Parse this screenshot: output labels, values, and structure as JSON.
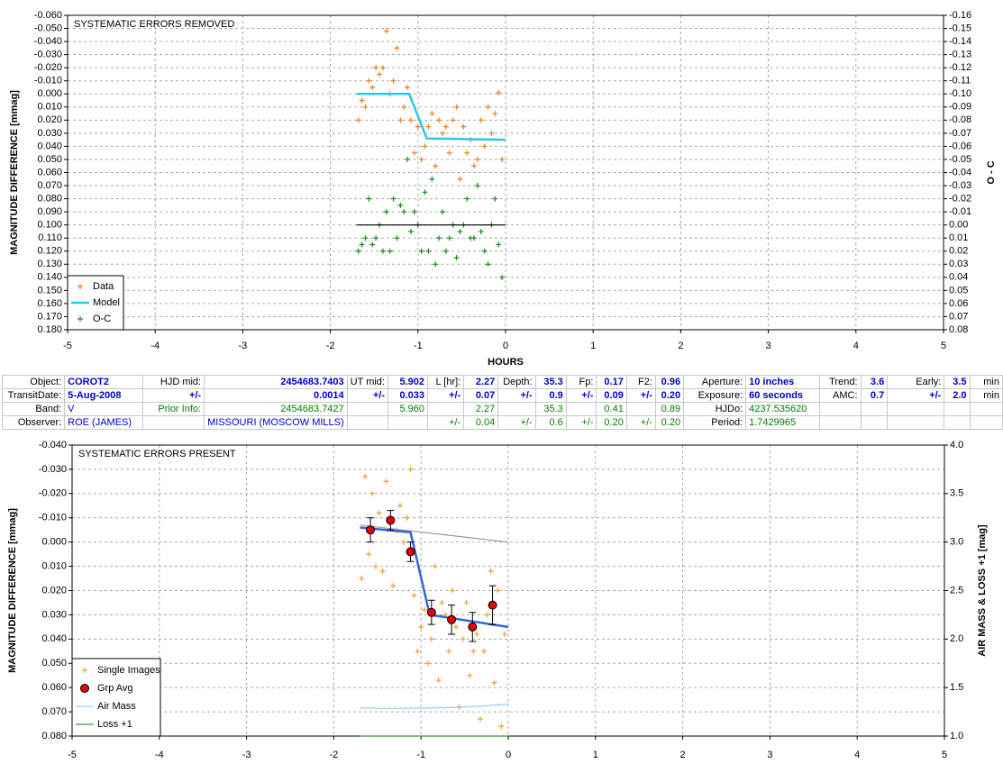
{
  "chart_data": [
    {
      "type": "scatter",
      "title": "SYSTEMATIC ERRORS REMOVED",
      "ylabel": "MAGNITUDE DIFFERENCE [mmag]",
      "y2label": "O - C",
      "xlabel": "HOURS",
      "xlim": [
        -5,
        5
      ],
      "xticks": [
        -5,
        -4,
        -3,
        -2,
        -1,
        0,
        1,
        2,
        3,
        4,
        5
      ],
      "ylim": [
        -0.06,
        0.18
      ],
      "y_reversed": true,
      "yticks": [
        {
          "value": -0.06,
          "label": "-0.060"
        },
        {
          "value": -0.05,
          "label": "-0.050"
        },
        {
          "value": -0.04,
          "label": "-0.040"
        },
        {
          "value": -0.03,
          "label": "-0.030"
        },
        {
          "value": -0.02,
          "label": "-0.020"
        },
        {
          "value": -0.01,
          "label": "-0.010"
        },
        {
          "value": 0,
          "label": "0.000"
        },
        {
          "value": 0.01,
          "label": "0.010"
        },
        {
          "value": 0.02,
          "label": "0.020"
        },
        {
          "value": 0.03,
          "label": "0.030"
        },
        {
          "value": 0.04,
          "label": "0.040"
        },
        {
          "value": 0.05,
          "label": "0.050"
        },
        {
          "value": 0.06,
          "label": "0.060"
        },
        {
          "value": 0.07,
          "label": "0.070"
        },
        {
          "value": 0.08,
          "label": "0.080"
        },
        {
          "value": 0.09,
          "label": "0.090"
        },
        {
          "value": 0.1,
          "label": "0.100"
        },
        {
          "value": 0.11,
          "label": "0.110"
        },
        {
          "value": 0.12,
          "label": "0.120"
        },
        {
          "value": 0.13,
          "label": "0.130"
        },
        {
          "value": 0.14,
          "label": "0.140"
        },
        {
          "value": 0.15,
          "label": "0.150"
        },
        {
          "value": 0.16,
          "label": "0.160"
        },
        {
          "value": 0.17,
          "label": "0.170"
        },
        {
          "value": 0.18,
          "label": "0.180"
        }
      ],
      "y2lim": [
        -0.16,
        0.08
      ],
      "y2_reversed": true,
      "y2ticks": [
        {
          "value": -0.16,
          "label": "-0.16"
        },
        {
          "value": -0.15,
          "label": "-0.15"
        },
        {
          "value": -0.14,
          "label": "-0.14"
        },
        {
          "value": -0.13,
          "label": "-0.13"
        },
        {
          "value": -0.12,
          "label": "-0.12"
        },
        {
          "value": -0.11,
          "label": "-0.11"
        },
        {
          "value": -0.1,
          "label": "-0.10"
        },
        {
          "value": -0.09,
          "label": "-0.09"
        },
        {
          "value": -0.08,
          "label": "-0.08"
        },
        {
          "value": -0.07,
          "label": "-0.07"
        },
        {
          "value": -0.06,
          "label": "-0.06"
        },
        {
          "value": -0.05,
          "label": "-0.05"
        },
        {
          "value": -0.04,
          "label": "-0.04"
        },
        {
          "value": -0.03,
          "label": "-0.03"
        },
        {
          "value": -0.02,
          "label": "-0.02"
        },
        {
          "value": -0.01,
          "label": "-0.01"
        },
        {
          "value": 0,
          "label": "0.00"
        },
        {
          "value": 0.01,
          "label": "0.01"
        },
        {
          "value": 0.02,
          "label": "0.02"
        },
        {
          "value": 0.03,
          "label": "0.03"
        },
        {
          "value": 0.04,
          "label": "0.04"
        },
        {
          "value": 0.05,
          "label": "0.05"
        },
        {
          "value": 0.06,
          "label": "0.06"
        },
        {
          "value": 0.07,
          "label": "0.07"
        },
        {
          "value": 0.08,
          "label": "0.08"
        }
      ],
      "grid": true,
      "legend": "lower left",
      "series": [
        {
          "name": "Data",
          "type": "scatter",
          "marker": "plus",
          "color": "#e8801e",
          "x": [
            -1.68,
            -1.64,
            -1.6,
            -1.56,
            -1.52,
            -1.48,
            -1.44,
            -1.4,
            -1.36,
            -1.32,
            -1.28,
            -1.24,
            -1.2,
            -1.16,
            -1.12,
            -1.08,
            -1.04,
            -1.0,
            -0.96,
            -0.92,
            -0.88,
            -0.84,
            -0.8,
            -0.76,
            -0.72,
            -0.68,
            -0.64,
            -0.6,
            -0.56,
            -0.52,
            -0.48,
            -0.44,
            -0.4,
            -0.36,
            -0.32,
            -0.28,
            -0.24,
            -0.2,
            -0.16,
            -0.12,
            -0.08,
            -0.04
          ],
          "values": [
            0.02,
            0.005,
            0.01,
            -0.01,
            -0.005,
            -0.02,
            -0.015,
            -0.02,
            -0.048,
            0.0,
            -0.01,
            -0.035,
            0.02,
            0.01,
            -0.005,
            0.02,
            0.045,
            0.025,
            0.05,
            0.04,
            0.025,
            0.015,
            0.055,
            0.02,
            0.03,
            0.025,
            0.045,
            0.02,
            0.01,
            0.065,
            0.025,
            0.045,
            0.035,
            0.055,
            0.05,
            0.02,
            0.04,
            0.01,
            0.03,
            0.015,
            -0.001,
            0.05
          ]
        },
        {
          "name": "Model",
          "type": "line",
          "color": "#33c4ee",
          "width": 2.5,
          "x": [
            -1.7,
            -1.1,
            -0.9,
            0.0
          ],
          "values": [
            0.0,
            0.0,
            0.034,
            0.035
          ]
        },
        {
          "name": "O-C",
          "type": "scatter",
          "marker": "plus",
          "color": "#1a8a1a",
          "axis": "y2",
          "x": [
            -1.68,
            -1.64,
            -1.6,
            -1.56,
            -1.52,
            -1.48,
            -1.44,
            -1.4,
            -1.36,
            -1.32,
            -1.28,
            -1.24,
            -1.2,
            -1.16,
            -1.12,
            -1.08,
            -1.04,
            -1.0,
            -0.96,
            -0.92,
            -0.88,
            -0.84,
            -0.8,
            -0.76,
            -0.72,
            -0.68,
            -0.64,
            -0.6,
            -0.56,
            -0.52,
            -0.48,
            -0.44,
            -0.4,
            -0.36,
            -0.32,
            -0.28,
            -0.24,
            -0.2,
            -0.16,
            -0.12,
            -0.08,
            -0.04
          ],
          "values": [
            0.02,
            0.015,
            0.01,
            -0.02,
            0.015,
            0.01,
            0.0,
            0.02,
            -0.01,
            0.02,
            -0.02,
            0.01,
            -0.015,
            -0.01,
            -0.05,
            0.005,
            -0.01,
            0.0,
            0.02,
            -0.025,
            0.02,
            -0.035,
            0.03,
            0.01,
            -0.01,
            0.02,
            0.01,
            0.0,
            0.025,
            0.005,
            0.0,
            -0.02,
            0.01,
            0.01,
            -0.03,
            0.005,
            0.02,
            0.03,
            0.0,
            -0.02,
            0.015,
            0.04
          ]
        },
        {
          "type": "line",
          "color": "#000000",
          "width": 1.2,
          "axis": "y2",
          "x": [
            -1.7,
            0.0
          ],
          "values": [
            0.0,
            0.0
          ]
        }
      ]
    },
    {
      "type": "scatter",
      "title": "SYSTEMATIC ERRORS PRESENT",
      "ylabel": "MAGNITUDE DIFFERENCE [mmag]",
      "y2label": "AIR MASS & LOSS +1 [mag]",
      "xlim": [
        -5,
        5
      ],
      "xticks": [
        -5,
        -4,
        -3,
        -2,
        -1,
        0,
        1,
        2,
        3,
        4,
        5
      ],
      "ylim": [
        -0.04,
        0.08
      ],
      "y_reversed": true,
      "yticks": [
        {
          "value": -0.04,
          "label": "-0.040"
        },
        {
          "value": -0.03,
          "label": "-0.030"
        },
        {
          "value": -0.02,
          "label": "-0.020"
        },
        {
          "value": -0.01,
          "label": "-0.010"
        },
        {
          "value": 0,
          "label": "0.000"
        },
        {
          "value": 0.01,
          "label": "0.010"
        },
        {
          "value": 0.02,
          "label": "0.020"
        },
        {
          "value": 0.03,
          "label": "0.030"
        },
        {
          "value": 0.04,
          "label": "0.040"
        },
        {
          "value": 0.05,
          "label": "0.050"
        },
        {
          "value": 0.06,
          "label": "0.060"
        },
        {
          "value": 0.07,
          "label": "0.070"
        },
        {
          "value": 0.08,
          "label": "0.080"
        }
      ],
      "y2lim": [
        1.0,
        4.0
      ],
      "y2_reversed": false,
      "y2ticks": [
        {
          "value": 1.0,
          "label": "1.0"
        },
        {
          "value": 1.5,
          "label": "1.5"
        },
        {
          "value": 2.0,
          "label": "2.0"
        },
        {
          "value": 2.5,
          "label": "2.5"
        },
        {
          "value": 3.0,
          "label": "3.0"
        },
        {
          "value": 3.5,
          "label": "3.5"
        },
        {
          "value": 4.0,
          "label": "4.0"
        }
      ],
      "grid": true,
      "legend": "lower left",
      "series": [
        {
          "name": "Single Images",
          "type": "scatter",
          "marker": "plus",
          "color": "#f0a030",
          "x": [
            -1.68,
            -1.64,
            -1.6,
            -1.56,
            -1.52,
            -1.48,
            -1.44,
            -1.4,
            -1.36,
            -1.32,
            -1.28,
            -1.24,
            -1.2,
            -1.16,
            -1.12,
            -1.08,
            -1.04,
            -1.0,
            -0.96,
            -0.92,
            -0.88,
            -0.84,
            -0.8,
            -0.76,
            -0.72,
            -0.68,
            -0.64,
            -0.6,
            -0.56,
            -0.52,
            -0.48,
            -0.44,
            -0.4,
            -0.36,
            -0.32,
            -0.28,
            -0.24,
            -0.2,
            -0.16,
            -0.12,
            -0.08,
            -0.04
          ],
          "values": [
            0.015,
            -0.027,
            0.005,
            -0.02,
            0.01,
            -0.012,
            0.012,
            -0.025,
            -0.008,
            0.018,
            -0.005,
            -0.015,
            0.0,
            -0.01,
            -0.03,
            0.022,
            0.045,
            0.035,
            0.028,
            0.05,
            0.04,
            0.01,
            0.057,
            0.025,
            0.03,
            0.045,
            0.02,
            0.035,
            0.068,
            0.04,
            0.025,
            0.055,
            0.045,
            0.038,
            0.073,
            0.045,
            0.03,
            0.012,
            0.058,
            0.02,
            0.076,
            0.038
          ]
        },
        {
          "type": "line",
          "color": "#999999",
          "width": 1.2,
          "x": [
            -1.7,
            0.0
          ],
          "values": [
            -0.007,
            0.0
          ]
        },
        {
          "type": "line",
          "color": "#3366dd",
          "width": 2.5,
          "x": [
            -1.7,
            -1.12,
            -0.9,
            0.0
          ],
          "values": [
            -0.006,
            -0.004,
            0.03,
            0.035
          ]
        },
        {
          "name": "Grp Avg",
          "type": "errorbar",
          "color": "#e00000",
          "x": [
            -1.58,
            -1.35,
            -1.12,
            -0.88,
            -0.65,
            -0.41,
            -0.18
          ],
          "values": [
            -0.005,
            -0.009,
            0.004,
            0.029,
            0.032,
            0.035,
            0.026
          ],
          "errors": [
            0.005,
            0.004,
            0.004,
            0.005,
            0.006,
            0.006,
            0.008
          ]
        },
        {
          "name": "Air Mass",
          "type": "line",
          "color": "#99ccee",
          "width": 1.2,
          "axis": "y2",
          "x": [
            -1.7,
            -1.4,
            -1.0,
            -0.6,
            -0.3,
            0.0
          ],
          "values": [
            1.29,
            1.285,
            1.288,
            1.295,
            1.31,
            1.33
          ]
        },
        {
          "name": "Loss +1",
          "type": "line",
          "color": "#339933",
          "width": 1.2,
          "axis": "y2",
          "x": [
            -1.7,
            0.0
          ],
          "values": [
            1.0,
            1.0
          ]
        }
      ]
    }
  ],
  "table": {
    "rows": [
      [
        "Object:",
        "COROT2",
        "HJD mid:",
        "2454683.7403",
        "UT mid:",
        "5.902",
        "L [hr]:",
        "2.27",
        "Depth:",
        "35.3",
        "Fp:",
        "0.17",
        "F2:",
        "0.96",
        "Aperture:",
        "10 inches",
        "Trend:",
        "3.6",
        "Early:",
        "3.5",
        "min"
      ],
      [
        "TransitDate:",
        "5-Aug-2008",
        "+/-",
        "0.0014",
        "+/-",
        "0.033",
        "+/-",
        "0.07",
        "+/-",
        "0.9",
        "+/-",
        "0.09",
        "+/-",
        "0.20",
        "Exposure:",
        "60 seconds",
        "AMC:",
        "0.7",
        "+/-",
        "2.0",
        "min"
      ],
      [
        "Band:",
        "V",
        "Prior Info:",
        "2454683.7427",
        null,
        "5.960",
        null,
        "2.27",
        null,
        "35.3",
        null,
        "0.41",
        null,
        "0.89",
        "HJDo:",
        "4237.535620",
        null,
        null,
        null,
        null,
        null
      ],
      [
        "Observer:",
        "ROE (JAMES)",
        null,
        "MISSOURI (MOSCOW MILLS)",
        null,
        null,
        "+/-",
        "0.04",
        "+/-",
        "0.6",
        "+/-",
        "0.20",
        "+/-",
        "0.20",
        "Period:",
        "1.7429965",
        null,
        null,
        null,
        null,
        null
      ]
    ]
  }
}
